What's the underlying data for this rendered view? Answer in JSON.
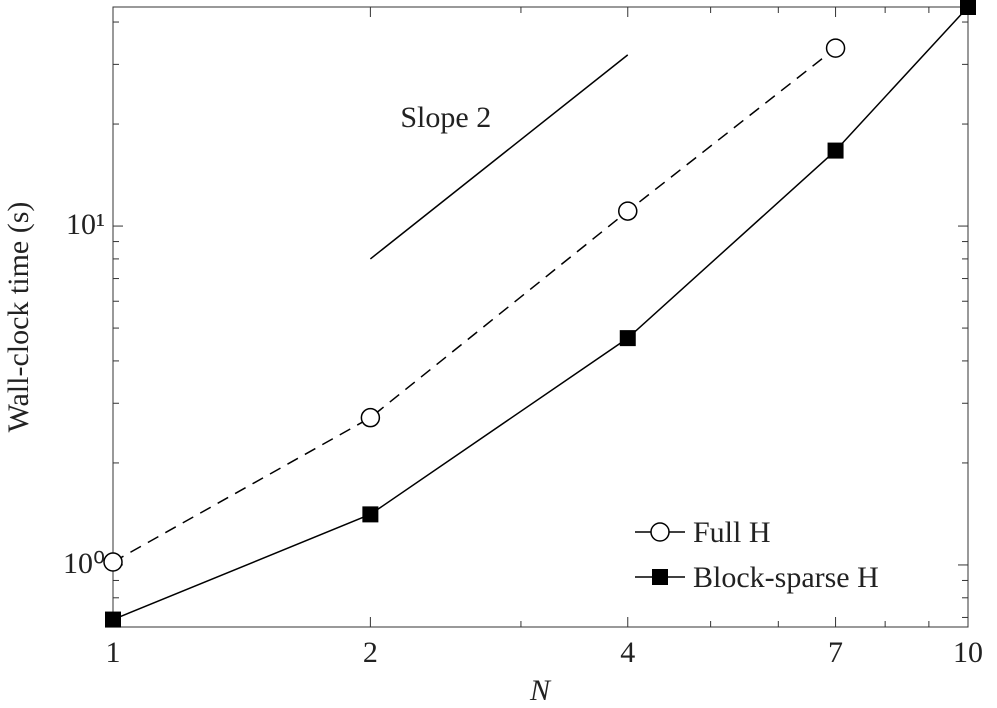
{
  "chart_data": {
    "type": "line",
    "log_x": true,
    "log_y": true,
    "x_label": "N",
    "y_label": "Wall-clock time (s)",
    "x": [
      1,
      2,
      4,
      7,
      10
    ],
    "series": [
      {
        "name": "Full H",
        "color": "#000000",
        "dash": true,
        "marker": "open-circle",
        "values": [
          1.02,
          2.72,
          11.07,
          33.5,
          null
        ]
      },
      {
        "name": "Block-sparse H",
        "color": "#000000",
        "dash": false,
        "marker": "filled-square",
        "values": [
          0.69,
          1.41,
          4.67,
          16.7,
          44.3
        ]
      }
    ],
    "reference_line": {
      "label": "Slope 2",
      "x": [
        2,
        4
      ],
      "y": [
        8,
        32
      ]
    },
    "xlim": [
      1,
      10
    ],
    "ylim": [
      0.656,
      44.3
    ],
    "xticks": [
      1,
      2,
      4,
      7,
      10
    ],
    "xminorticks": [
      3,
      5,
      6,
      8,
      9
    ],
    "yticks": [
      {
        "value": 1,
        "label": "10⁰"
      },
      {
        "value": 10,
        "label": "10¹"
      }
    ],
    "yminorticks": [
      0.7,
      0.8,
      0.9,
      2,
      3,
      4,
      5,
      6,
      7,
      8,
      9,
      20,
      30,
      40
    ],
    "legend": "lower right"
  }
}
